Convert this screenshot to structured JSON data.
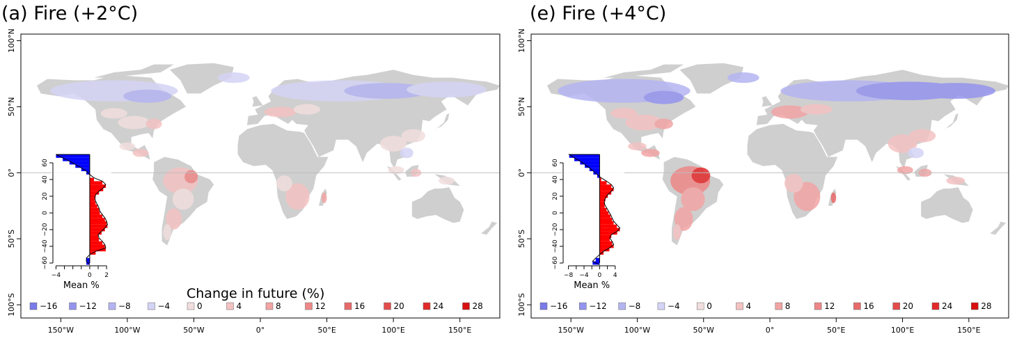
{
  "colors": {
    "land": "#cfcfcf",
    "neg_bar": "#0000ff",
    "pos_bar": "#ff0000",
    "frame": "#000000"
  },
  "legend": {
    "title": "Change in future (%)",
    "items": [
      {
        "label": "−16",
        "color": "#7a7ae8"
      },
      {
        "label": "−12",
        "color": "#9494ee"
      },
      {
        "label": "−8",
        "color": "#b4b4f2"
      },
      {
        "label": "−4",
        "color": "#d4d4f6"
      },
      {
        "label": "0",
        "color": "#f2dede"
      },
      {
        "label": "4",
        "color": "#f4c2c2"
      },
      {
        "label": "8",
        "color": "#f2a4a4"
      },
      {
        "label": "12",
        "color": "#ee8888"
      },
      {
        "label": "16",
        "color": "#e86a6a"
      },
      {
        "label": "20",
        "color": "#e44c4c"
      },
      {
        "label": "24",
        "color": "#e22a2a"
      },
      {
        "label": "28",
        "color": "#d81010"
      }
    ]
  },
  "chart_data": [
    {
      "type": "heatmap",
      "title": "(a) Fire (+2°C)",
      "map": {
        "lon_ticks": [
          "150°W",
          "100°W",
          "50°W",
          "0°",
          "50°E",
          "100°E",
          "150°E"
        ],
        "lon_values": [
          -150,
          -100,
          -50,
          0,
          50,
          100,
          150
        ],
        "lat_ticks": [
          "100°N",
          "50°N",
          "0°",
          "50°S",
          "100°S"
        ],
        "lat_values": [
          100,
          50,
          0,
          -50,
          -100
        ],
        "xlim": [
          -180,
          180
        ],
        "ylim": [
          -110,
          105
        ]
      },
      "inset": {
        "type": "area",
        "xlabel": "Mean %",
        "x_ticks": [
          -4,
          0,
          2
        ],
        "x_tick_labels": [
          "−4",
          "0",
          "2"
        ],
        "xlim": [
          -4.2,
          2.4
        ],
        "y_ticks": [
          60,
          40,
          20,
          0,
          -20,
          -40,
          -60
        ],
        "ylim": [
          -60,
          70
        ],
        "latitudes": [
          70,
          66,
          62,
          58,
          54,
          50,
          46,
          42,
          38,
          34,
          30,
          26,
          22,
          18,
          14,
          10,
          6,
          2,
          -2,
          -6,
          -10,
          -14,
          -18,
          -22,
          -26,
          -30,
          -34,
          -38,
          -42,
          -46,
          -50,
          -54,
          -58
        ],
        "values": [
          -4.0,
          -3.2,
          -2.4,
          -1.7,
          -1.0,
          -0.4,
          0.0,
          0.5,
          1.5,
          1.9,
          1.6,
          1.1,
          0.7,
          0.6,
          0.7,
          0.9,
          1.1,
          1.2,
          1.5,
          1.8,
          2.0,
          2.1,
          1.8,
          1.4,
          1.0,
          1.1,
          1.5,
          1.8,
          1.9,
          0.7,
          0.0,
          -0.4,
          -0.4
        ]
      }
    },
    {
      "type": "heatmap",
      "title": "(e) Fire (+4°C)",
      "map": {
        "lon_ticks": [
          "150°W",
          "100°W",
          "50°W",
          "0°",
          "50°E",
          "100°E",
          "150°E"
        ],
        "lon_values": [
          -150,
          -100,
          -50,
          0,
          50,
          100,
          150
        ],
        "lat_ticks": [
          "100°N",
          "50°N",
          "0°",
          "50°S",
          "100°S"
        ],
        "lat_values": [
          100,
          50,
          0,
          -50,
          -100
        ],
        "xlim": [
          -180,
          180
        ],
        "ylim": [
          -110,
          105
        ]
      },
      "inset": {
        "type": "area",
        "xlabel": "Mean %",
        "x_ticks": [
          -8,
          -4,
          0,
          4
        ],
        "x_tick_labels": [
          "−8",
          "−4",
          "0",
          "4"
        ],
        "xlim": [
          -9,
          6
        ],
        "y_ticks": [
          60,
          40,
          20,
          0,
          -20,
          -40,
          -60
        ],
        "ylim": [
          -60,
          70
        ],
        "latitudes": [
          70,
          66,
          62,
          58,
          54,
          50,
          46,
          42,
          38,
          34,
          30,
          26,
          22,
          18,
          14,
          10,
          6,
          2,
          -2,
          -6,
          -10,
          -14,
          -18,
          -22,
          -26,
          -30,
          -34,
          -38,
          -42,
          -46,
          -50,
          -54,
          -58
        ],
        "values": [
          -7.8,
          -6.5,
          -5.0,
          -3.8,
          -2.6,
          -1.6,
          -0.6,
          0.4,
          1.8,
          3.0,
          3.6,
          3.0,
          2.1,
          1.5,
          1.2,
          1.3,
          1.8,
          2.3,
          2.8,
          3.2,
          3.6,
          4.4,
          5.2,
          4.5,
          3.0,
          2.6,
          3.2,
          3.6,
          2.5,
          1.0,
          0.0,
          -1.0,
          -1.8
        ]
      }
    }
  ]
}
